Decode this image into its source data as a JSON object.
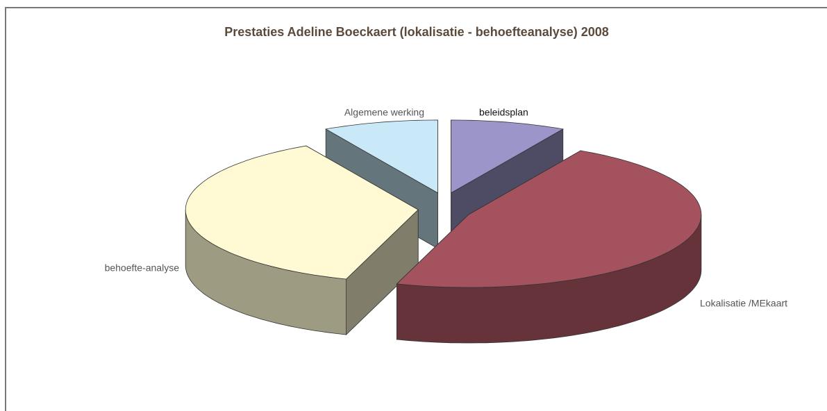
{
  "chart_data": {
    "type": "pie3d",
    "title": "Prestaties Adeline Boeckaert (lokalisatie - behoefteanalyse) 2008",
    "categories": [
      "beleidsplan",
      "Lokalisatie /MEkaart",
      "behoefte-analyse",
      "Algemene werking"
    ],
    "values": [
      8,
      47,
      37,
      8
    ],
    "colors": [
      "#9c95c9",
      "#a5525f",
      "#fffad4",
      "#c9e9f8"
    ]
  }
}
